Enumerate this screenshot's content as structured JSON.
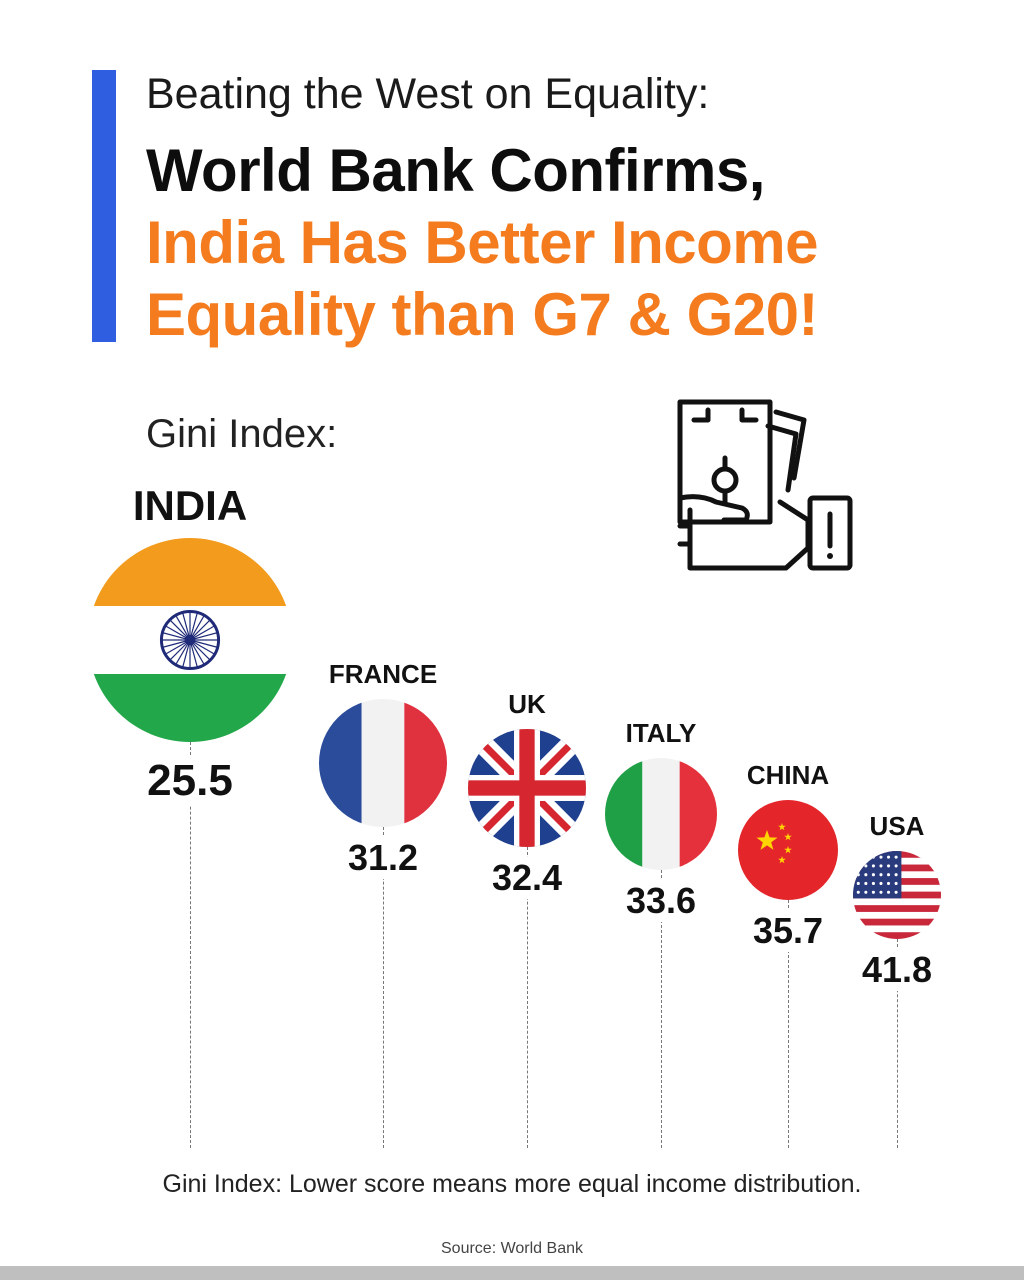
{
  "header": {
    "line1": "Beating the West on Equality:",
    "line2": "World Bank Confirms,",
    "line3": "India Has Better Income",
    "line4": "Equality than G7 & G20!"
  },
  "metric_label": "Gini Index:",
  "icon": "money-hand-warning-icon",
  "colors": {
    "accent": "#2f5fe0",
    "highlight": "#f47c1f"
  },
  "chart_data": {
    "type": "lollipop",
    "metric": "Gini Index",
    "categories": [
      "INDIA",
      "FRANCE",
      "UK",
      "ITALY",
      "CHINA",
      "USA"
    ],
    "values": [
      25.5,
      31.2,
      32.4,
      33.6,
      35.7,
      41.8
    ],
    "value_labels": [
      "25.5",
      "31.2",
      "32.4",
      "33.6",
      "35.7",
      "41.8"
    ]
  },
  "footnote": "Gini Index: Lower score means more equal income distribution.",
  "source": "Source: World Bank"
}
